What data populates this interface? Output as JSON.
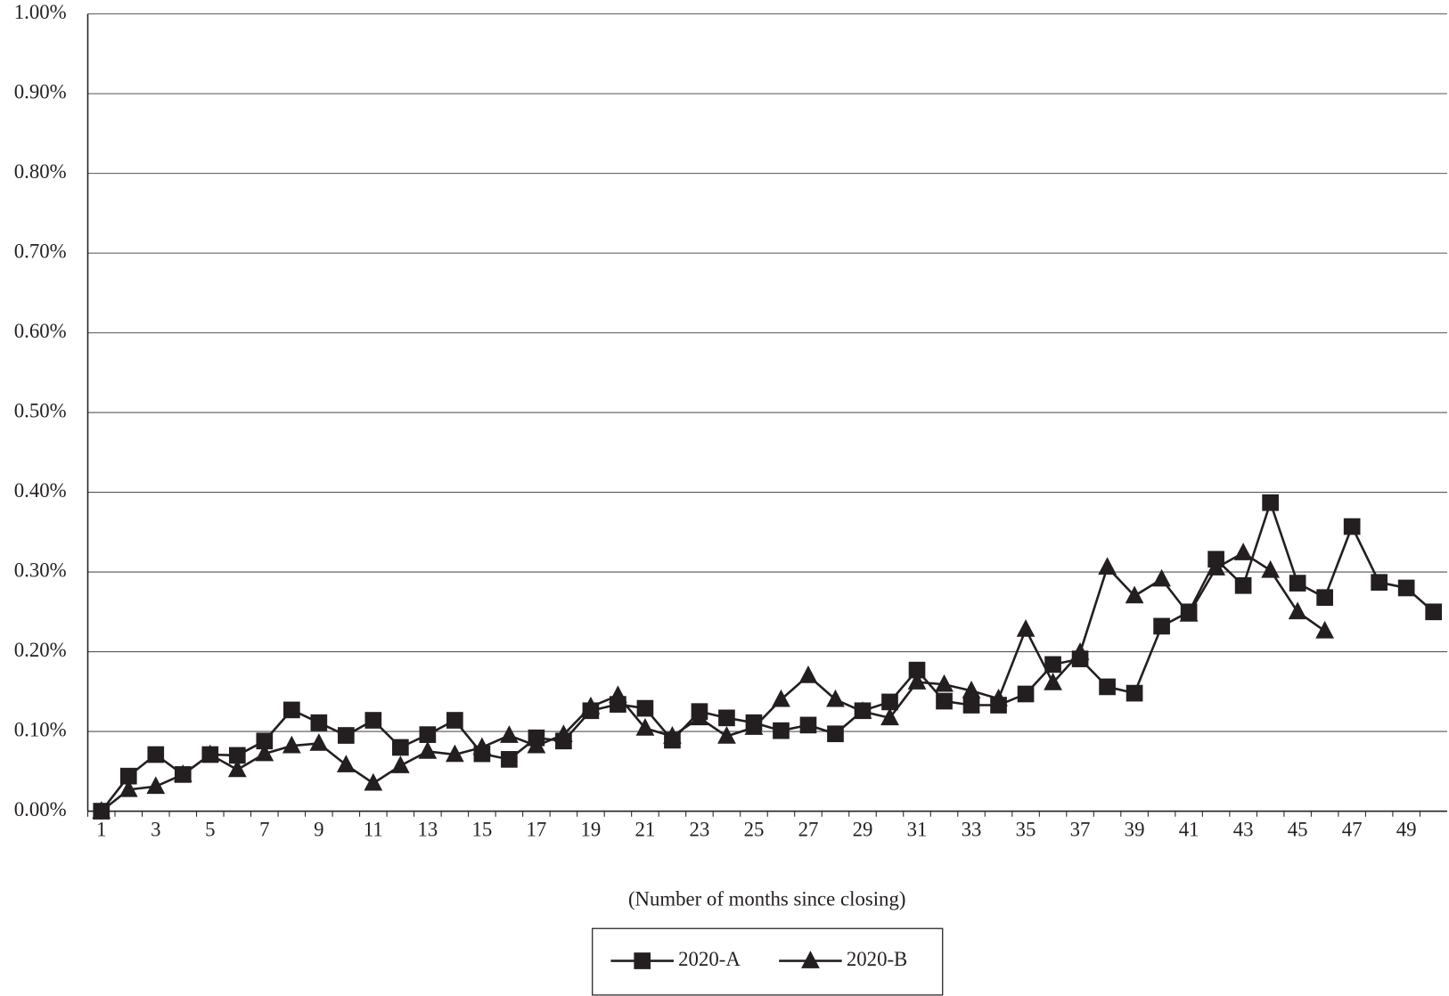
{
  "chart_data": {
    "type": "line",
    "x_label": "(Number of months since closing)",
    "categories": [
      1,
      null,
      3,
      null,
      5,
      null,
      7,
      null,
      9,
      null,
      11,
      null,
      13,
      null,
      15,
      null,
      17,
      null,
      19,
      null,
      21,
      null,
      23,
      null,
      25,
      null,
      27,
      null,
      29,
      null,
      31,
      null,
      33,
      null,
      35,
      null,
      37,
      null,
      39,
      null,
      41,
      null,
      43,
      null,
      45,
      null,
      47,
      null,
      49,
      null
    ],
    "series": [
      {
        "name": "2020-A",
        "color": "#231f20",
        "marker": "square",
        "values": [
          0,
          0.044,
          0.071,
          0.046,
          0.071,
          0.07,
          0.088,
          0.127,
          0.111,
          0.095,
          0.114,
          0.08,
          0.096,
          0.114,
          0.072,
          0.065,
          0.092,
          0.088,
          0.126,
          0.134,
          0.129,
          0.089,
          0.125,
          0.117,
          0.111,
          0.101,
          0.108,
          0.097,
          0.126,
          0.137,
          0.177,
          0.138,
          0.133,
          0.133,
          0.147,
          0.184,
          0.191,
          0.156,
          0.148,
          0.232,
          0.25,
          0.316,
          0.283,
          0.387,
          0.286,
          0.268,
          0.357,
          0.287,
          0.28,
          0.25
        ]
      },
      {
        "name": "2020-B",
        "color": "#231f20",
        "marker": "triangle",
        "values": [
          0,
          0.027,
          0.031,
          0.046,
          0.071,
          0.052,
          0.072,
          0.082,
          0.085,
          0.058,
          0.035,
          0.057,
          0.075,
          0.071,
          0.08,
          0.095,
          0.082,
          0.096,
          0.131,
          0.145,
          0.104,
          0.094,
          0.117,
          0.094,
          0.105,
          0.14,
          0.17,
          0.14,
          0.125,
          0.117,
          0.162,
          0.159,
          0.151,
          0.141,
          0.228,
          0.161,
          0.199,
          0.306,
          0.27,
          0.291,
          0.247,
          0.305,
          0.324,
          0.302,
          0.25,
          0.226,
          null,
          null,
          null,
          null
        ]
      }
    ],
    "ylim": [
      0,
      1
    ],
    "yticks": [
      {
        "value": 0,
        "label": "0.00%"
      },
      {
        "value": 0.1,
        "label": "0.10%"
      },
      {
        "value": 0.2,
        "label": "0.20%"
      },
      {
        "value": 0.3,
        "label": "0.30%"
      },
      {
        "value": 0.4,
        "label": "0.40%"
      },
      {
        "value": 0.5,
        "label": "0.50%"
      },
      {
        "value": 0.6,
        "label": "0.60%"
      },
      {
        "value": 0.7,
        "label": "0.70%"
      },
      {
        "value": 0.8,
        "label": "0.80%"
      },
      {
        "value": 0.9,
        "label": "0.90%"
      },
      {
        "value": 1,
        "label": "1.00%"
      }
    ],
    "grid": true,
    "legend": "bottom"
  }
}
